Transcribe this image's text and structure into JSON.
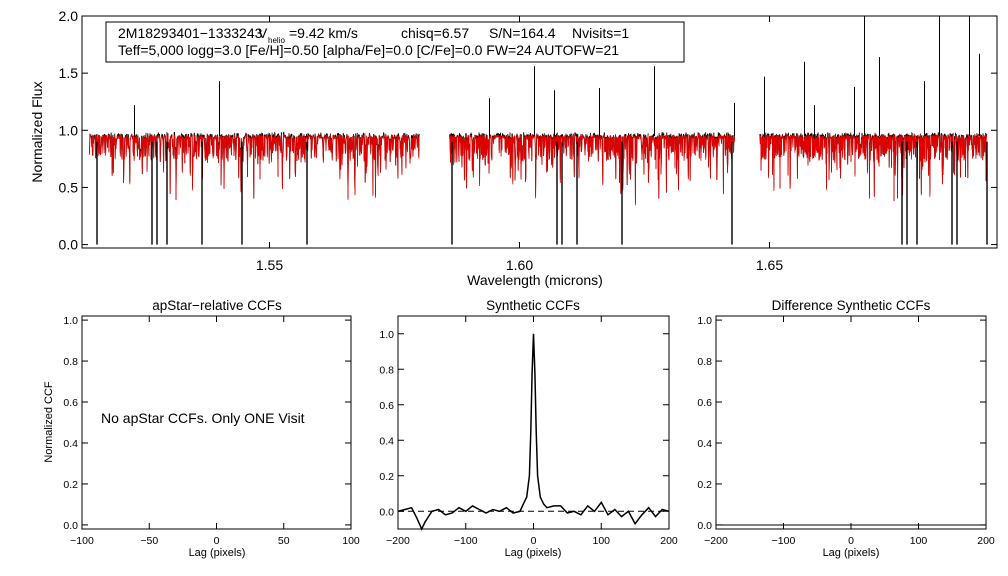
{
  "chart_data": [
    {
      "type": "line",
      "id": "spectrum",
      "xlabel": "Wavelength (microns)",
      "ylabel": "Normalized Flux",
      "xlim": [
        1.5125,
        1.6955
      ],
      "ylim": [
        -0.03,
        2.0
      ],
      "xticks": [
        1.55,
        1.6,
        1.65
      ],
      "yticks": [
        0.0,
        0.5,
        1.0,
        1.5,
        2.0
      ],
      "annotation": {
        "id": "2M18293401−1333243",
        "v_prefix": "V",
        "v_sub": "helio",
        "v_suffix": "=9.42 km/s",
        "chisq": "chisq=6.57",
        "snr": "S/N=164.4",
        "nvisits": "Nvisits=1",
        "line2": "Teff=5,000 logg=3.0 [Fe/H]=0.50 [alpha/Fe]=0.0 [C/Fe]=0.0 FW=24 AUTOFW=21"
      },
      "chips": [
        [
          1.514,
          1.58
        ],
        [
          1.586,
          1.643
        ],
        [
          1.648,
          1.6935
        ]
      ],
      "series": [
        {
          "name": "observed spectrum",
          "color": "#000000"
        },
        {
          "name": "synthetic model",
          "color": "#e00000"
        }
      ],
      "emission_spikes": [
        [
          1.523,
          1.22
        ],
        [
          1.54,
          1.43
        ],
        [
          1.594,
          1.28
        ],
        [
          1.603,
          1.56
        ],
        [
          1.607,
          1.35
        ],
        [
          1.616,
          1.37
        ],
        [
          1.627,
          1.56
        ],
        [
          1.643,
          1.24
        ],
        [
          1.649,
          1.47
        ],
        [
          1.657,
          1.6
        ],
        [
          1.659,
          1.22
        ],
        [
          1.667,
          1.38
        ],
        [
          1.669,
          2.05
        ],
        [
          1.672,
          1.64
        ],
        [
          1.681,
          1.43
        ],
        [
          1.684,
          2.05
        ],
        [
          1.69,
          2.05
        ],
        [
          1.692,
          1.67
        ]
      ],
      "deep_absorptions": [
        [
          1.5155,
          0.0
        ],
        [
          1.5265,
          0.0
        ],
        [
          1.5275,
          0.0
        ],
        [
          1.5295,
          0.0
        ],
        [
          1.5365,
          0.0
        ],
        [
          1.5445,
          0.0
        ],
        [
          1.5575,
          0.0
        ],
        [
          1.5865,
          0.0
        ],
        [
          1.6075,
          0.0
        ],
        [
          1.6085,
          0.0
        ],
        [
          1.6115,
          0.0
        ],
        [
          1.6205,
          0.0
        ],
        [
          1.6425,
          0.0
        ],
        [
          1.6765,
          0.0
        ],
        [
          1.6775,
          0.0
        ],
        [
          1.6795,
          0.0
        ],
        [
          1.6865,
          0.0
        ],
        [
          1.6875,
          0.0
        ],
        [
          1.6935,
          0.0
        ]
      ]
    },
    {
      "type": "line",
      "id": "apstar_ccf",
      "title": "apStar−relative CCFs",
      "xlabel": "Lag (pixels)",
      "ylabel": "Normalized CCF",
      "xlim": [
        -100,
        100
      ],
      "ylim": [
        -0.02,
        1.02
      ],
      "xticks": [
        -100,
        -50,
        0,
        50,
        100
      ],
      "yticks": [
        0.0,
        0.2,
        0.4,
        0.6,
        0.8,
        1.0
      ],
      "message": "No apStar CCFs.  Only ONE Visit",
      "series": []
    },
    {
      "type": "line",
      "id": "synthetic_ccf",
      "title": "Synthetic CCFs",
      "xlabel": "Lag (pixels)",
      "ylabel": "",
      "xlim": [
        -200,
        200
      ],
      "ylim": [
        -0.1,
        1.1
      ],
      "xticks": [
        -200,
        -100,
        0,
        100,
        200
      ],
      "yticks": [
        0.0,
        0.2,
        0.4,
        0.6,
        0.8,
        1.0
      ],
      "baseline": 0.0,
      "series": [
        {
          "name": "Synthetic CCF",
          "color": "#000000",
          "x": [
            -200,
            -190,
            -180,
            -172,
            -165,
            -160,
            -155,
            -150,
            -140,
            -130,
            -120,
            -110,
            -100,
            -90,
            -80,
            -70,
            -60,
            -50,
            -40,
            -30,
            -20,
            -15,
            -10,
            -6,
            -4,
            -2,
            0,
            2,
            4,
            6,
            10,
            15,
            20,
            30,
            40,
            50,
            60,
            70,
            80,
            90,
            100,
            110,
            120,
            130,
            140,
            150,
            160,
            170,
            180,
            190,
            200
          ],
          "values": [
            0.0,
            0.01,
            0.02,
            -0.04,
            -0.1,
            -0.06,
            -0.03,
            0.0,
            0.01,
            -0.02,
            -0.01,
            0.02,
            0.0,
            0.03,
            0.01,
            -0.01,
            0.01,
            0.0,
            0.02,
            -0.01,
            0.0,
            0.04,
            0.08,
            0.2,
            0.45,
            0.78,
            1.0,
            0.78,
            0.45,
            0.2,
            0.08,
            0.04,
            0.02,
            0.03,
            0.03,
            -0.01,
            0.0,
            -0.02,
            0.03,
            0.0,
            0.05,
            -0.02,
            0.01,
            -0.03,
            0.0,
            -0.07,
            -0.02,
            0.02,
            -0.03,
            0.01,
            0.0
          ]
        }
      ]
    },
    {
      "type": "line",
      "id": "difference_ccf",
      "title": "Difference Synthetic CCFs",
      "xlabel": "Lag (pixels)",
      "ylabel": "",
      "xlim": [
        -200,
        200
      ],
      "ylim": [
        -0.02,
        1.02
      ],
      "xticks": [
        -200,
        -100,
        0,
        100,
        200
      ],
      "yticks": [
        0.0,
        0.2,
        0.4,
        0.6,
        0.8,
        1.0
      ],
      "series": []
    }
  ]
}
